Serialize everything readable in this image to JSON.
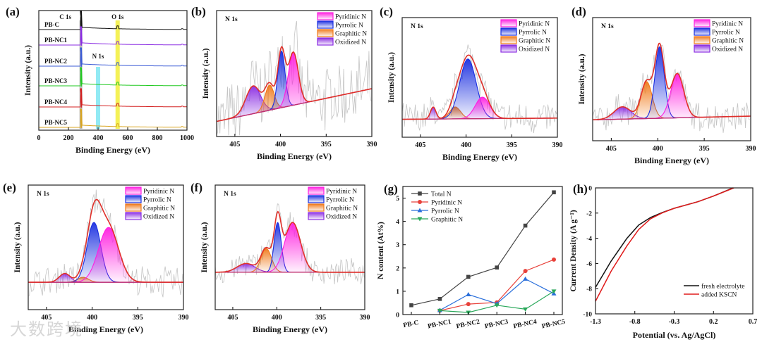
{
  "watermark": "大数跨境",
  "chart_data": [
    {
      "id": "a",
      "panel_label": "(a)",
      "type": "line",
      "xlabel": "Binding Energy (eV)",
      "ylabel": "Intensity (a.u.)",
      "xlim": [
        0,
        1000
      ],
      "xticks": [
        "0",
        "200",
        "400",
        "600",
        "800",
        "1000"
      ],
      "annotations": [
        {
          "text": "C 1s",
          "ev": 284,
          "band_color": "#b0b0b0"
        },
        {
          "text": "O 1s",
          "ev": 532,
          "band_color": "#f2ee3a"
        },
        {
          "text": "N 1s",
          "ev": 400,
          "band_color": "#7fe6f2"
        }
      ],
      "series": [
        {
          "name": "PB-C",
          "color": "#111111"
        },
        {
          "name": "PB-NC1",
          "color": "#8a2be2"
        },
        {
          "name": "PB-NC2",
          "color": "#3b5bd6"
        },
        {
          "name": "PB-NC3",
          "color": "#22c922"
        },
        {
          "name": "PB-NC4",
          "color": "#d42020"
        },
        {
          "name": "PB-NC5",
          "color": "#d9a520"
        }
      ]
    },
    {
      "id": "b",
      "panel_label": "(b)",
      "type": "area",
      "title": "N 1s",
      "xlabel": "Binding Energy (eV)",
      "ylabel": "Intensity (a.u.)",
      "xlim": [
        407,
        390
      ],
      "xticks": [
        "405",
        "400",
        "395",
        "390"
      ],
      "baseline": [
        0.12,
        0.38
      ],
      "noise": 0.28,
      "components": [
        {
          "name": "Pyridinic N",
          "center": 398.6,
          "amplitude": 0.42,
          "sigma": 0.55,
          "color": "#ff1ee0"
        },
        {
          "name": "Pyrrolic N",
          "center": 399.9,
          "amplitude": 0.45,
          "sigma": 0.4,
          "color": "#1a2ee0"
        },
        {
          "name": "Graphitic N",
          "center": 401.2,
          "amplitude": 0.2,
          "sigma": 0.5,
          "color": "#f07a1a"
        },
        {
          "name": "Oxidized N",
          "center": 403.0,
          "amplitude": 0.22,
          "sigma": 0.8,
          "color": "#8a2be2"
        }
      ]
    },
    {
      "id": "c",
      "panel_label": "(c)",
      "type": "area",
      "title": "N 1s",
      "xlabel": "Binding Energy (eV)",
      "ylabel": "Intensity (a.u.)",
      "xlim": [
        407,
        390
      ],
      "xticks": [
        "405",
        "400",
        "395",
        "390"
      ],
      "baseline": [
        0.15,
        0.16
      ],
      "noise": 0.14,
      "components": [
        {
          "name": "Pyridinic N",
          "center": 398.2,
          "amplitude": 0.18,
          "sigma": 0.8,
          "color": "#ff1ee0"
        },
        {
          "name": "Pyrrolic N",
          "center": 399.8,
          "amplitude": 0.5,
          "sigma": 0.9,
          "color": "#1a2ee0"
        },
        {
          "name": "Graphitic N",
          "center": 401.2,
          "amplitude": 0.1,
          "sigma": 0.6,
          "color": "#f07a1a"
        },
        {
          "name": "Oxidized N",
          "center": 403.6,
          "amplitude": 0.1,
          "sigma": 0.3,
          "color": "#8a2be2"
        }
      ]
    },
    {
      "id": "d",
      "panel_label": "(d)",
      "type": "area",
      "title": "N 1s",
      "xlabel": "Binding Energy (eV)",
      "ylabel": "Intensity (a.u.)",
      "xlim": [
        407,
        390
      ],
      "xticks": [
        "405",
        "400",
        "395",
        "390"
      ],
      "baseline": [
        0.17,
        0.2
      ],
      "noise": 0.12,
      "components": [
        {
          "name": "Pyridinic N",
          "center": 397.9,
          "amplitude": 0.36,
          "sigma": 0.7,
          "color": "#ff1ee0"
        },
        {
          "name": "Pyrrolic N",
          "center": 399.8,
          "amplitude": 0.58,
          "sigma": 0.5,
          "color": "#1a2ee0"
        },
        {
          "name": "Graphitic N",
          "center": 401.2,
          "amplitude": 0.3,
          "sigma": 0.6,
          "color": "#f07a1a"
        },
        {
          "name": "Oxidized N",
          "center": 403.8,
          "amplitude": 0.1,
          "sigma": 0.9,
          "color": "#8a2be2"
        }
      ]
    },
    {
      "id": "e",
      "panel_label": "(e)",
      "type": "area",
      "title": "N 1s",
      "xlabel": "Binding Energy (eV)",
      "ylabel": "Intensity (a.u.)",
      "xlim": [
        407,
        390
      ],
      "xticks": [
        "405",
        "400",
        "395",
        "390"
      ],
      "baseline": [
        0.22,
        0.22
      ],
      "noise": 0.12,
      "components": [
        {
          "name": "Pyridinic N",
          "center": 398.2,
          "amplitude": 0.44,
          "sigma": 1.1,
          "color": "#ff1ee0"
        },
        {
          "name": "Pyrrolic N",
          "center": 399.8,
          "amplitude": 0.48,
          "sigma": 0.75,
          "color": "#1a2ee0"
        },
        {
          "name": "Graphitic N",
          "center": 401.0,
          "amplitude": 0.04,
          "sigma": 0.6,
          "color": "#f07a1a"
        },
        {
          "name": "Oxidized N",
          "center": 403.0,
          "amplitude": 0.07,
          "sigma": 0.6,
          "color": "#8a2be2"
        }
      ]
    },
    {
      "id": "f",
      "panel_label": "(f)",
      "type": "area",
      "title": "N 1s",
      "xlabel": "Binding Energy (eV)",
      "ylabel": "Intensity (a.u.)",
      "xlim": [
        407,
        390
      ],
      "xticks": [
        "405",
        "400",
        "395",
        "390"
      ],
      "baseline": [
        0.3,
        0.3
      ],
      "noise": 0.1,
      "components": [
        {
          "name": "Pyridinic N",
          "center": 398.2,
          "amplitude": 0.4,
          "sigma": 0.9,
          "color": "#ff1ee0"
        },
        {
          "name": "Pyrrolic N",
          "center": 399.9,
          "amplitude": 0.4,
          "sigma": 0.4,
          "color": "#1a2ee0"
        },
        {
          "name": "Graphitic N",
          "center": 401.2,
          "amplitude": 0.19,
          "sigma": 0.6,
          "color": "#f07a1a"
        },
        {
          "name": "Oxidized N",
          "center": 403.5,
          "amplitude": 0.07,
          "sigma": 1.0,
          "color": "#8a2be2"
        }
      ]
    },
    {
      "id": "g",
      "panel_label": "(g)",
      "type": "line",
      "xlabel": "",
      "ylabel": "N content (At%)",
      "categories": [
        "PB-C",
        "PB-NC1",
        "PB-NC2",
        "PB-NC3",
        "PB-NC4",
        "PB-NC5"
      ],
      "ylim": [
        0,
        5.5
      ],
      "yticks": [
        "0",
        "1",
        "2",
        "3",
        "4",
        "5"
      ],
      "legend": "top-left",
      "series": [
        {
          "name": "Total N",
          "color": "#444444",
          "marker": "square",
          "values": [
            0.4,
            0.67,
            1.62,
            2.02,
            3.82,
            5.25
          ]
        },
        {
          "name": "Pyridinic N",
          "color": "#e8413a",
          "marker": "circle",
          "values": [
            null,
            0.17,
            0.45,
            0.52,
            1.87,
            2.36
          ]
        },
        {
          "name": "Pyrrolic N",
          "color": "#2a6fdb",
          "marker": "triangle-up",
          "values": [
            null,
            0.18,
            0.86,
            0.47,
            1.53,
            0.9
          ]
        },
        {
          "name": "Graphitic N",
          "color": "#2aa85a",
          "marker": "triangle-down",
          "values": [
            null,
            0.17,
            0.09,
            0.4,
            0.23,
            1.0
          ]
        }
      ]
    },
    {
      "id": "h",
      "panel_label": "(h)",
      "type": "line",
      "xlabel": "Potential (vs. Ag/AgCl)",
      "ylabel": "Current Density (A g⁻¹)",
      "xlim": [
        -1.3,
        0.7
      ],
      "ylim": [
        -10,
        0
      ],
      "xticks": [
        "-1.3",
        "-0.8",
        "-0.3",
        "0.2",
        "0.7"
      ],
      "yticks": [
        "0",
        "-2",
        "-4",
        "-6",
        "-8",
        "-10"
      ],
      "legend": "bottom-right",
      "series": [
        {
          "name": "fresh electrolyte",
          "color": "#111111",
          "x": [
            -1.3,
            -1.1,
            -0.9,
            -0.75,
            -0.6,
            -0.45,
            -0.3,
            0.0,
            0.2,
            0.45
          ],
          "y": [
            -7.9,
            -5.8,
            -4.0,
            -2.95,
            -2.35,
            -1.95,
            -1.62,
            -1.1,
            -0.65,
            0.0
          ]
        },
        {
          "name": "added KSCN",
          "color": "#e01b1b",
          "x": [
            -1.3,
            -1.1,
            -0.9,
            -0.75,
            -0.6,
            -0.45,
            -0.3,
            0.0,
            0.2,
            0.46
          ],
          "y": [
            -9.0,
            -6.6,
            -4.6,
            -3.3,
            -2.45,
            -1.98,
            -1.62,
            -1.1,
            -0.65,
            0.0
          ]
        }
      ]
    }
  ]
}
